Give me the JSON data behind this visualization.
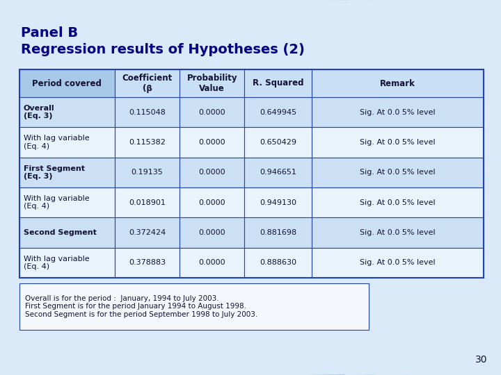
{
  "title_line1": "Panel B",
  "title_line2": "Regression results of Hypotheses (2)",
  "title_color": "#000080",
  "slide_bg": "#daeaf8",
  "header_bg_left": "#a8c8e8",
  "header_bg_right": "#c8dff5",
  "row_bg_bold": "#cce0f5",
  "row_bg_normal": "#e8f3fc",
  "col_headers": [
    "Period covered",
    "Coefficient\n(β",
    "Probability\nValue",
    "R. Squared",
    "Remark"
  ],
  "rows": [
    {
      "label": "Overall\n(Eq. 3)",
      "bold": true,
      "coeff": "0.115048",
      "prob": "0.0000",
      "rsq": "0.649945",
      "remark": "Sig. At 0.0 5% level"
    },
    {
      "label": "With lag variable\n(Eq. 4)",
      "bold": false,
      "coeff": "0.115382",
      "prob": "0.0000",
      "rsq": "0.650429",
      "remark": "Sig. At 0.0 5% level"
    },
    {
      "label": "First Segment\n(Eq. 3)",
      "bold": true,
      "coeff": "0.19135",
      "prob": "0.0000",
      "rsq": "0.946651",
      "remark": "Sig. At 0.0 5% level"
    },
    {
      "label": "With lag variable\n(Eq. 4)",
      "bold": false,
      "coeff": "0.018901",
      "prob": "0.0000",
      "rsq": "0.949130",
      "remark": "Sig. At 0.0 5% level"
    },
    {
      "label": "Second Segment",
      "bold": true,
      "coeff": "0.372424",
      "prob": "0.0000",
      "rsq": "0.881698",
      "remark": "Sig. At 0.0 5% level"
    },
    {
      "label": "With lag variable\n(Eq. 4)",
      "bold": false,
      "coeff": "0.378883",
      "prob": "0.0000",
      "rsq": "0.888630",
      "remark": "Sig. At 0.0 5% level"
    }
  ],
  "footnote_lines": [
    "Overall is for the period :  January, 1994 to July 2003.",
    "First Segment is for the period January 1994 to August 1998.",
    "Second Segment is for the period September 1998 to July 2003."
  ],
  "page_number": "30",
  "table_border_color": "#2244aa",
  "arc_color_top": "#7ab8e8",
  "arc_color_bottom": "#5aaad8",
  "top_arc_bg": "#c0dff5"
}
